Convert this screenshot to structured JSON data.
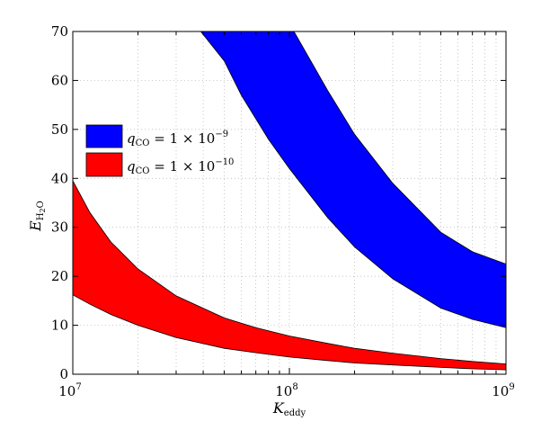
{
  "chart_data": {
    "type": "area",
    "title": "",
    "xlabel": {
      "main": "K",
      "sub": "eddy"
    },
    "ylabel": {
      "main": "E",
      "sub": "H",
      "sub2": "2",
      "sub3": "O"
    },
    "x_scale": "log",
    "xlim": [
      10000000,
      1000000000
    ],
    "ylim": [
      0,
      70
    ],
    "x_ticks": [
      {
        "value": 10000000,
        "base": "10",
        "exp": "7"
      },
      {
        "value": 100000000,
        "base": "10",
        "exp": "8"
      },
      {
        "value": 1000000000,
        "base": "10",
        "exp": "9"
      }
    ],
    "y_ticks": [
      0,
      10,
      20,
      30,
      40,
      50,
      60,
      70
    ],
    "grid": true,
    "legend_position": "upper-left",
    "series": [
      {
        "name": "q_CO = 1 × 10^-9",
        "legend": {
          "q": "q",
          "sub": "CO",
          "text": " = 1 × 10",
          "exp": "−9"
        },
        "color": "#0000ff",
        "lower": [
          {
            "x": 50000000,
            "y": 64
          },
          {
            "x": 60000000,
            "y": 57
          },
          {
            "x": 80000000,
            "y": 48
          },
          {
            "x": 100000000,
            "y": 42
          },
          {
            "x": 150000000,
            "y": 32
          },
          {
            "x": 200000000,
            "y": 26
          },
          {
            "x": 300000000,
            "y": 19.5
          },
          {
            "x": 500000000,
            "y": 13.5
          },
          {
            "x": 700000000,
            "y": 11.2
          },
          {
            "x": 1000000000,
            "y": 9.5
          }
        ],
        "upper": [
          {
            "x": 105000000,
            "y": 70
          },
          {
            "x": 150000000,
            "y": 58
          },
          {
            "x": 200000000,
            "y": 49
          },
          {
            "x": 300000000,
            "y": 39
          },
          {
            "x": 500000000,
            "y": 29
          },
          {
            "x": 700000000,
            "y": 25
          },
          {
            "x": 1000000000,
            "y": 22.5
          }
        ],
        "upper_left_top": {
          "x": 39000000,
          "y": 70
        }
      },
      {
        "name": "q_CO = 1 × 10^-10",
        "legend": {
          "q": "q",
          "sub": "CO",
          "text": " = 1 × 10",
          "exp": "−10"
        },
        "color": "#ff0000",
        "upper": [
          {
            "x": 10000000,
            "y": 39.5
          },
          {
            "x": 12000000,
            "y": 33
          },
          {
            "x": 15000000,
            "y": 27
          },
          {
            "x": 20000000,
            "y": 21.5
          },
          {
            "x": 30000000,
            "y": 16
          },
          {
            "x": 50000000,
            "y": 11.5
          },
          {
            "x": 70000000,
            "y": 9.5
          },
          {
            "x": 100000000,
            "y": 7.8
          },
          {
            "x": 150000000,
            "y": 6.3
          },
          {
            "x": 200000000,
            "y": 5.3
          },
          {
            "x": 300000000,
            "y": 4.3
          },
          {
            "x": 500000000,
            "y": 3.2
          },
          {
            "x": 700000000,
            "y": 2.6
          },
          {
            "x": 1000000000,
            "y": 2.1
          }
        ],
        "lower": [
          {
            "x": 10000000,
            "y": 16.2
          },
          {
            "x": 12000000,
            "y": 14.3
          },
          {
            "x": 15000000,
            "y": 12.2
          },
          {
            "x": 20000000,
            "y": 10
          },
          {
            "x": 30000000,
            "y": 7.5
          },
          {
            "x": 50000000,
            "y": 5.3
          },
          {
            "x": 70000000,
            "y": 4.4
          },
          {
            "x": 100000000,
            "y": 3.5
          },
          {
            "x": 150000000,
            "y": 2.8
          },
          {
            "x": 200000000,
            "y": 2.3
          },
          {
            "x": 300000000,
            "y": 1.9
          },
          {
            "x": 500000000,
            "y": 1.4
          },
          {
            "x": 700000000,
            "y": 1.1
          },
          {
            "x": 1000000000,
            "y": 0.9
          }
        ]
      }
    ]
  }
}
